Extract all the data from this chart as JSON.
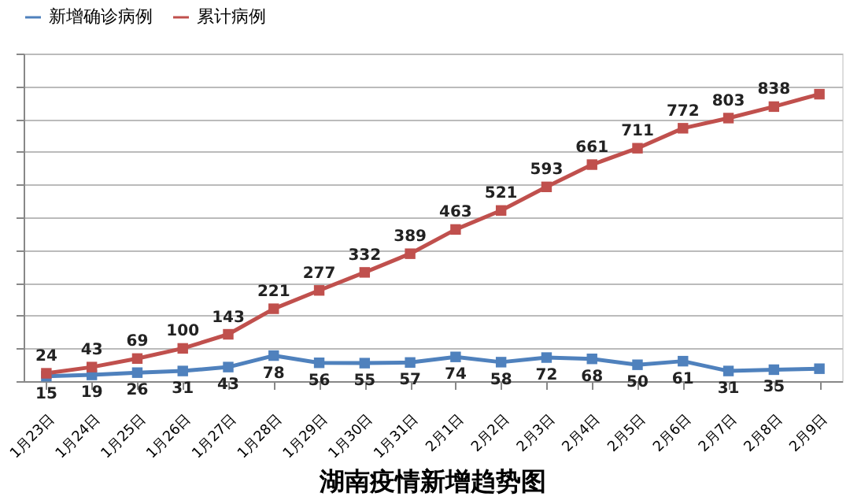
{
  "chart_data": {
    "type": "line",
    "title": "湖南疫情新增趋势图",
    "categories": [
      "1月23日",
      "1月24日",
      "1月25日",
      "1月26日",
      "1月27日",
      "1月28日",
      "1月29日",
      "1月30日",
      "1月31日",
      "2月1日",
      "2月2日",
      "2月3日",
      "2月4日",
      "2月5日",
      "2月6日",
      "2月7日",
      "2月8日",
      "2月9日"
    ],
    "series": [
      {
        "name": "新增确诊病例",
        "color": "#4f81bd",
        "values": [
          15,
          19,
          26,
          31,
          43,
          78,
          56,
          55,
          57,
          74,
          58,
          72,
          68,
          50,
          61,
          31,
          35,
          38
        ],
        "value_labels": [
          "15",
          "19",
          "26",
          "31",
          "43",
          "78",
          "56",
          "55",
          "57",
          "74",
          "58",
          "72",
          "68",
          "50",
          "61",
          "31",
          "35",
          null
        ]
      },
      {
        "name": "累计病例",
        "color": "#c0504d",
        "values": [
          24,
          43,
          69,
          100,
          143,
          221,
          277,
          332,
          389,
          463,
          521,
          593,
          661,
          711,
          772,
          803,
          838,
          876
        ],
        "value_labels": [
          "24",
          "43",
          "69",
          "100",
          "143",
          "221",
          "277",
          "332",
          "389",
          "463",
          "521",
          "593",
          "661",
          "711",
          "772",
          "803",
          "838",
          null
        ]
      }
    ],
    "ylim": [
      0,
      1000
    ],
    "tick_labels": "x",
    "grid": "y",
    "legend": "top",
    "marker": "square",
    "line_style": "solid"
  }
}
